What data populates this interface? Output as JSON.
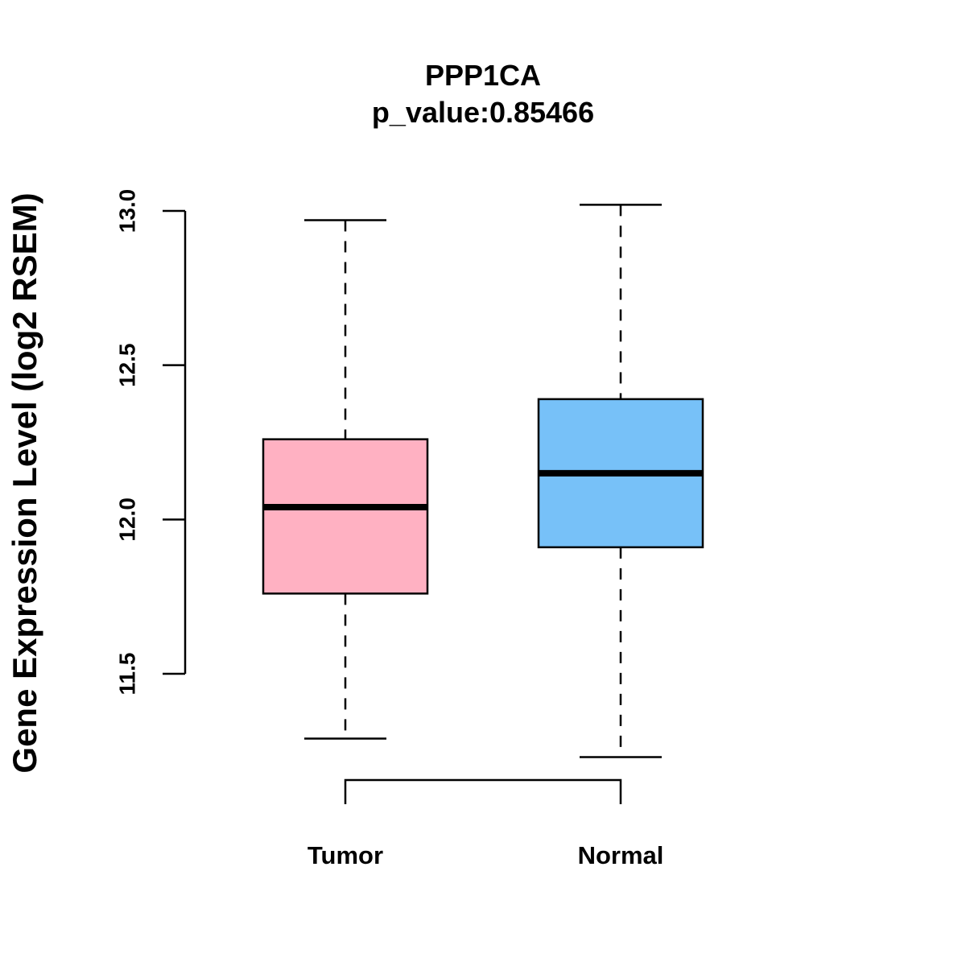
{
  "chart_data": {
    "type": "boxplot",
    "title": "PPP1CA",
    "subtitle": "p_value:0.85466",
    "xlabel": "",
    "ylabel": "Gene Expression Level (log2 RSEM)",
    "ylim": [
      11.5,
      13.0
    ],
    "yticks": [
      11.5,
      12.0,
      12.5,
      13.0
    ],
    "ytick_labels": [
      "11.5",
      "12.0",
      "12.5",
      "13.0"
    ],
    "categories": [
      "Tumor",
      "Normal"
    ],
    "series": [
      {
        "name": "Tumor",
        "color": "#FFB1C2",
        "min": 11.29,
        "q1": 11.76,
        "median": 12.04,
        "q3": 12.26,
        "max": 12.97
      },
      {
        "name": "Normal",
        "color": "#77C1F8",
        "min": 11.23,
        "q1": 11.91,
        "median": 12.15,
        "q3": 12.39,
        "max": 13.02
      }
    ],
    "bracket": {
      "from": "Tumor",
      "to": "Normal"
    }
  }
}
